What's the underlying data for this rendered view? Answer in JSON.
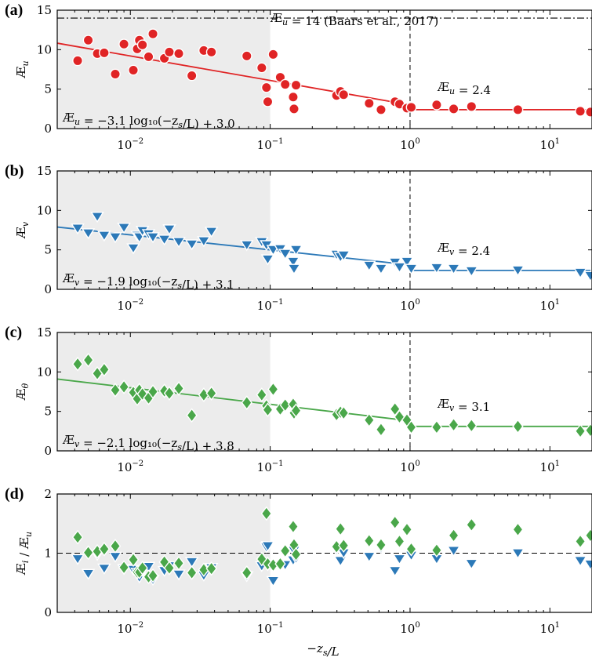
{
  "colors": {
    "u": "#e02425",
    "v": "#2c79b8",
    "theta": "#4aa74a",
    "shade": "#ececec",
    "black": "#000000"
  },
  "xlabel": "−z_s/L",
  "x_tick_labels": [
    "10^-2",
    "10^-1",
    "10^0",
    "10^1"
  ],
  "chart_data": [
    {
      "type": "scatter",
      "panel": "(a)",
      "ylabel": "Æ_u",
      "xscale": "log",
      "xlim": [
        0.003,
        20
      ],
      "ylim": [
        0,
        15
      ],
      "yticks": [
        0,
        5,
        10,
        15
      ],
      "shaded_region": [
        0.003,
        0.1
      ],
      "vertical_dashed_line_x": 1,
      "reference_line": {
        "y": 14,
        "label": "Æ_u = 14 (Baars et al., 2017)"
      },
      "fit_label": "Æ_u = −3.1 log₁₀(−z_s/L) + 3.0",
      "constant_label": "Æ_u = 2.4",
      "fit": {
        "slope": -3.1,
        "intercept": 3.0,
        "constant": 2.4,
        "breakpoint": 1
      },
      "series": [
        {
          "name": "",
          "marker": "circle",
          "x": [
            0.0042,
            0.005,
            0.0058,
            0.0065,
            0.0078,
            0.009,
            0.0105,
            0.0112,
            0.0116,
            0.0122,
            0.0135,
            0.0145,
            0.0175,
            0.019,
            0.0222,
            0.0275,
            0.0335,
            0.038,
            0.068,
            0.087,
            0.094,
            0.096,
            0.105,
            0.118,
            0.128,
            0.146,
            0.148,
            0.153,
            0.298,
            0.318,
            0.335,
            0.51,
            0.62,
            0.78,
            0.84,
            0.95,
            1.02,
            1.55,
            2.05,
            2.75,
            5.9,
            16.5,
            19.5
          ],
          "y": [
            8.6,
            11.2,
            9.5,
            9.6,
            6.9,
            10.7,
            7.4,
            10.1,
            11.2,
            10.6,
            9.1,
            12.0,
            8.9,
            9.7,
            9.5,
            6.7,
            9.9,
            9.7,
            9.2,
            7.7,
            5.2,
            3.4,
            9.4,
            6.5,
            5.6,
            4.0,
            2.5,
            5.5,
            4.2,
            4.7,
            4.3,
            3.2,
            2.4,
            3.4,
            3.1,
            2.6,
            2.7,
            3.0,
            2.5,
            2.8,
            2.4,
            2.2,
            2.1
          ]
        }
      ]
    },
    {
      "type": "scatter",
      "panel": "(b)",
      "ylabel": "Æ_v",
      "xscale": "log",
      "xlim": [
        0.003,
        20
      ],
      "ylim": [
        0,
        15
      ],
      "yticks": [
        0,
        5,
        10,
        15
      ],
      "shaded_region": [
        0.003,
        0.1
      ],
      "vertical_dashed_line_x": 1,
      "fit_label": "Æ_v = −1.9 log₁₀(−z_s/L) + 3.1",
      "constant_label": "Æ_v = 2.4",
      "fit": {
        "slope": -1.9,
        "intercept": 3.1,
        "constant": 2.4,
        "breakpoint": 1
      },
      "series": [
        {
          "name": "",
          "marker": "triangle-down",
          "x": [
            0.0042,
            0.005,
            0.0058,
            0.0065,
            0.0078,
            0.009,
            0.0105,
            0.0112,
            0.0116,
            0.0122,
            0.0135,
            0.0145,
            0.0175,
            0.019,
            0.0222,
            0.0275,
            0.0335,
            0.038,
            0.068,
            0.087,
            0.094,
            0.096,
            0.105,
            0.118,
            0.128,
            0.146,
            0.148,
            0.153,
            0.298,
            0.318,
            0.335,
            0.51,
            0.62,
            0.78,
            0.84,
            0.95,
            1.02,
            1.55,
            2.05,
            2.75,
            5.9,
            16.5,
            19.5
          ],
          "y": [
            7.7,
            7.1,
            9.2,
            6.8,
            6.6,
            7.8,
            5.2,
            6.8,
            6.6,
            7.4,
            7.0,
            6.6,
            6.3,
            7.6,
            6.0,
            5.7,
            6.1,
            7.3,
            5.6,
            6.0,
            5.6,
            3.8,
            5.0,
            5.1,
            4.5,
            3.5,
            2.6,
            5.0,
            4.4,
            4.1,
            4.3,
            3.0,
            2.6,
            3.4,
            2.8,
            3.5,
            2.6,
            2.7,
            2.6,
            2.3,
            2.4,
            2.1,
            1.7
          ]
        }
      ]
    },
    {
      "type": "scatter",
      "panel": "(c)",
      "ylabel": "Æ_θ",
      "xscale": "log",
      "xlim": [
        0.003,
        20
      ],
      "ylim": [
        0,
        15
      ],
      "yticks": [
        0,
        5,
        10,
        15
      ],
      "shaded_region": [
        0.003,
        0.1
      ],
      "vertical_dashed_line_x": 1,
      "fit_label": "Æ_v = −2.1 log₁₀(−z_s/L) + 3.8",
      "constant_label": "Æ_v = 3.1",
      "fit": {
        "slope": -2.1,
        "intercept": 3.8,
        "constant": 3.1,
        "breakpoint": 1
      },
      "series": [
        {
          "name": "",
          "marker": "diamond",
          "x": [
            0.0042,
            0.005,
            0.0058,
            0.0065,
            0.0078,
            0.009,
            0.0105,
            0.0112,
            0.0116,
            0.0122,
            0.0135,
            0.0145,
            0.0175,
            0.019,
            0.0222,
            0.0275,
            0.0335,
            0.038,
            0.068,
            0.087,
            0.094,
            0.096,
            0.105,
            0.118,
            0.128,
            0.146,
            0.148,
            0.153,
            0.298,
            0.318,
            0.335,
            0.51,
            0.62,
            0.78,
            0.84,
            0.95,
            1.02,
            1.55,
            2.05,
            2.75,
            5.9,
            16.5,
            19.5
          ],
          "y": [
            11.0,
            11.5,
            9.8,
            10.3,
            7.7,
            8.1,
            7.4,
            6.6,
            7.7,
            7.2,
            6.7,
            7.5,
            7.6,
            7.3,
            7.9,
            4.5,
            7.1,
            7.3,
            6.1,
            7.1,
            5.7,
            5.2,
            7.8,
            5.3,
            5.8,
            5.9,
            4.8,
            5.1,
            4.6,
            4.9,
            4.8,
            3.9,
            2.7,
            5.3,
            4.3,
            3.9,
            3.0,
            3.0,
            3.3,
            3.2,
            3.1,
            2.5,
            2.6
          ]
        }
      ]
    },
    {
      "type": "scatter",
      "panel": "(d)",
      "ylabel": "Æ_i / Æ_u",
      "xscale": "log",
      "xlim": [
        0.003,
        20
      ],
      "ylim": [
        0,
        2
      ],
      "yticks": [
        0,
        1,
        2
      ],
      "shaded_region": [
        0.003,
        0.1
      ],
      "horizontal_dashed_line_y": 1,
      "series": [
        {
          "name": "",
          "marker": "triangle-down",
          "x": [
            0.0042,
            0.005,
            0.0058,
            0.0065,
            0.0078,
            0.009,
            0.0105,
            0.0112,
            0.0116,
            0.0122,
            0.0135,
            0.0145,
            0.0175,
            0.019,
            0.0222,
            0.0275,
            0.0335,
            0.038,
            0.068,
            0.087,
            0.094,
            0.096,
            0.105,
            0.118,
            0.128,
            0.146,
            0.148,
            0.153,
            0.298,
            0.318,
            0.335,
            0.51,
            0.62,
            0.78,
            0.84,
            0.95,
            1.02,
            1.55,
            2.05,
            2.75,
            5.9,
            16.5,
            19.5
          ],
          "y": [
            0.9,
            0.65,
            0.97,
            0.74,
            0.94,
            0.73,
            0.72,
            0.67,
            0.59,
            0.7,
            0.77,
            0.55,
            0.7,
            0.78,
            0.64,
            0.85,
            0.62,
            0.75,
            0.61,
            0.78,
            1.1,
            1.12,
            0.53,
            0.78,
            0.8,
            0.88,
            1.04,
            0.91,
            1.05,
            0.87,
            1.0,
            0.94,
            1.08,
            0.7,
            0.9,
            1.35,
            0.96,
            0.9,
            1.04,
            0.82,
            1.0,
            0.87,
            0.81
          ]
        },
        {
          "name": "",
          "marker": "diamond",
          "x": [
            0.0042,
            0.005,
            0.0058,
            0.0065,
            0.0078,
            0.009,
            0.0105,
            0.0112,
            0.0116,
            0.0122,
            0.0135,
            0.0145,
            0.0175,
            0.019,
            0.0222,
            0.0275,
            0.0335,
            0.038,
            0.068,
            0.087,
            0.094,
            0.096,
            0.105,
            0.118,
            0.128,
            0.146,
            0.148,
            0.153,
            0.298,
            0.318,
            0.335,
            0.51,
            0.62,
            0.78,
            0.84,
            0.95,
            1.02,
            1.55,
            2.05,
            2.75,
            5.9,
            16.5,
            19.5
          ],
          "y": [
            1.27,
            1.01,
            1.03,
            1.07,
            1.12,
            0.76,
            0.89,
            0.68,
            0.68,
            0.75,
            0.6,
            0.62,
            0.85,
            0.75,
            0.83,
            0.67,
            0.72,
            0.74,
            0.67,
            0.9,
            1.67,
            0.82,
            0.8,
            0.82,
            1.04,
            1.45,
            1.14,
            0.98,
            1.11,
            1.41,
            1.13,
            1.21,
            1.14,
            1.52,
            1.2,
            1.4,
            1.07,
            1.05,
            1.3,
            1.48,
            1.4,
            1.2,
            1.3
          ]
        }
      ]
    }
  ]
}
